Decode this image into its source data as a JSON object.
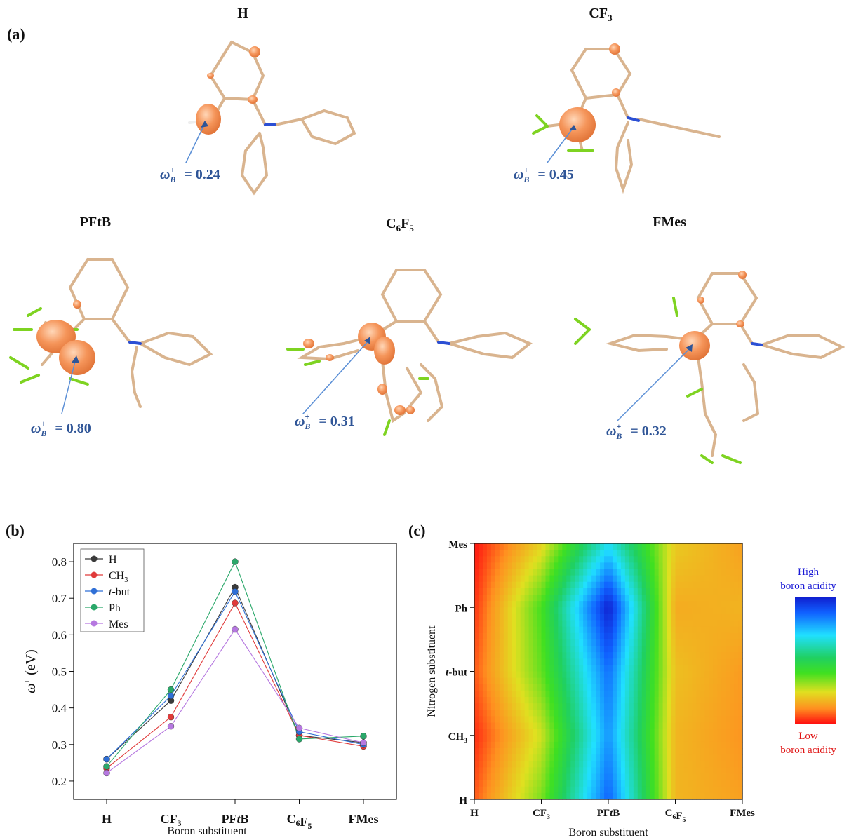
{
  "panel_a": {
    "label": "(a)",
    "molecules": [
      {
        "title": "H",
        "omega_label": "ω",
        "value_text": "= 0.24"
      },
      {
        "title": "CF",
        "title_sub": "3",
        "omega_label": "ω",
        "value_text": "= 0.45"
      },
      {
        "title": "PFtB",
        "omega_label": "ω",
        "value_text": "= 0.80"
      },
      {
        "title": "C",
        "title_sub": "6",
        "title_mid": "F",
        "title_sub2": "5",
        "omega_label": "ω",
        "value_text": "= 0.31"
      },
      {
        "title": "FMes",
        "omega_label": "ω",
        "value_text": "= 0.32"
      }
    ],
    "colors": {
      "bond": "#d9b48f",
      "nitrogen": "#2b4fd4",
      "fluorine": "#7ed321",
      "hydrogen": "#ffffff",
      "lobe": "#f5955a",
      "arrow": "#5b8fd6"
    }
  },
  "panel_b": {
    "label": "(b)",
    "chart_data": {
      "type": "line",
      "xlabel": "Boron substituent",
      "ylabel": "ω (eV)",
      "categories": [
        "H",
        "CF3",
        "PFtB",
        "C6F5",
        "FMes"
      ],
      "ylim": [
        0.15,
        0.85
      ],
      "yticks": [
        0.2,
        0.3,
        0.4,
        0.5,
        0.6,
        0.7,
        0.8
      ],
      "legend_position": "top-left",
      "series": [
        {
          "name": "H",
          "color": "#3a3a3a",
          "values": [
            0.26,
            0.42,
            0.73,
            0.325,
            0.305
          ]
        },
        {
          "name": "CH3",
          "color": "#e03a3a",
          "values": [
            0.235,
            0.375,
            0.687,
            0.325,
            0.295
          ]
        },
        {
          "name": "t-but",
          "color": "#2f6fd6",
          "values": [
            0.26,
            0.433,
            0.718,
            0.335,
            0.3
          ]
        },
        {
          "name": "Ph",
          "color": "#2aa86a",
          "values": [
            0.24,
            0.45,
            0.8,
            0.315,
            0.323
          ]
        },
        {
          "name": "Mes",
          "color": "#b678e0",
          "values": [
            0.222,
            0.35,
            0.615,
            0.345,
            0.305
          ]
        }
      ]
    }
  },
  "panel_c": {
    "label": "(c)",
    "chart_data": {
      "type": "heatmap",
      "xlabel": "Boron substituent",
      "ylabel": "Nitrogen substituent",
      "x_categories": [
        "H",
        "CF3",
        "PFtB",
        "C6F5",
        "FMes"
      ],
      "y_categories": [
        "H",
        "CH3",
        "t-but",
        "Ph",
        "Mes"
      ],
      "values": [
        [
          0.26,
          0.42,
          0.73,
          0.325,
          0.305
        ],
        [
          0.235,
          0.375,
          0.687,
          0.325,
          0.295
        ],
        [
          0.26,
          0.433,
          0.718,
          0.335,
          0.3
        ],
        [
          0.24,
          0.45,
          0.8,
          0.315,
          0.323
        ],
        [
          0.222,
          0.35,
          0.615,
          0.345,
          0.305
        ]
      ],
      "colorbar": {
        "high_label": "High boron acidity",
        "low_label": "Low boron acidity"
      }
    },
    "legend": {
      "high_line1": "High",
      "high_line2": "boron acidity",
      "low_line1": "Low",
      "low_line2": "boron acidity"
    }
  }
}
